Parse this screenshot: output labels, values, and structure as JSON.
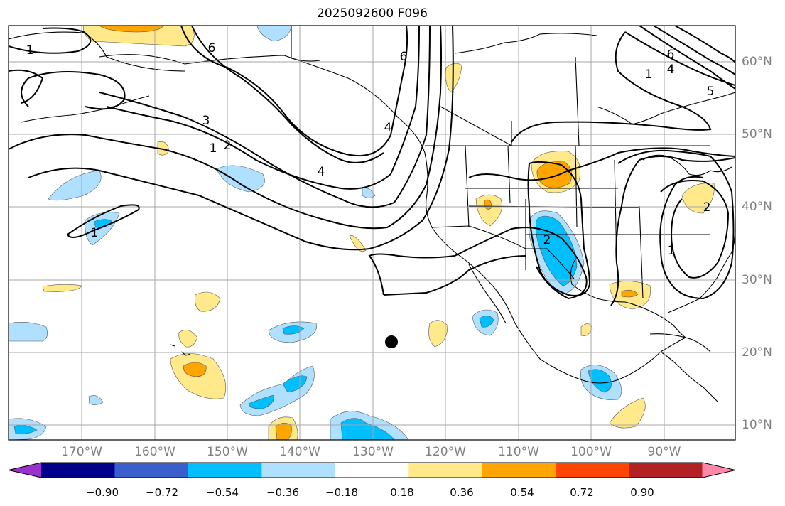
{
  "title": "2025092600 F096",
  "map": {
    "lon_labels": [
      "170°W",
      "160°W",
      "150°W",
      "140°W",
      "130°W",
      "120°W",
      "110°W",
      "100°W",
      "90°W"
    ],
    "lat_labels": [
      "60°N",
      "50°N",
      "40°N",
      "30°N",
      "20°N",
      "10°N"
    ],
    "contour_labels": [
      "1",
      "1",
      "1",
      "1",
      "2",
      "2",
      "2",
      "3",
      "4",
      "4",
      "6",
      "6",
      "6",
      "1",
      "4",
      "5"
    ],
    "marker": "black-dot"
  },
  "colorbar": {
    "colors": [
      "#9932cc",
      "#00008b",
      "#3a5fcd",
      "#00bfff",
      "#b0e0ff",
      "#ffffff",
      "#ffe98a",
      "#ffa500",
      "#ff4500",
      "#b22222",
      "#ff88aa"
    ],
    "labels": [
      "−0.90",
      "−0.72",
      "−0.54",
      "−0.36",
      "−0.18",
      "0.18",
      "0.36",
      "0.54",
      "0.72",
      "0.90"
    ]
  }
}
